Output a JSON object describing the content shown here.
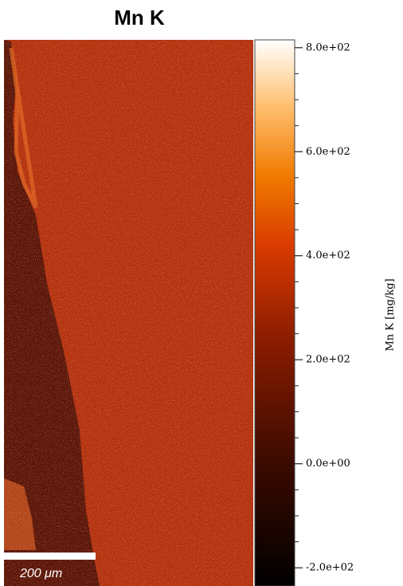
{
  "chart_data": {
    "type": "image-map",
    "title": "Mn K",
    "colorbar_label": "Mn K  [mg/kg]",
    "clim": [
      -235,
      815
    ],
    "cticks": [
      {
        "value": 800,
        "label": "8.0e+02"
      },
      {
        "value": 600,
        "label": "6.0e+02"
      },
      {
        "value": 400,
        "label": "4.0e+02"
      },
      {
        "value": 200,
        "label": "2.0e+02"
      },
      {
        "value": 0,
        "label": "0.0e+00"
      },
      {
        "value": -200,
        "label": "-2.0e+02"
      }
    ],
    "cminorticks": [
      -150,
      -100,
      -50,
      50,
      100,
      150,
      250,
      300,
      350,
      450,
      500,
      550,
      650,
      700,
      750
    ],
    "scalebar_label": "200 μm"
  }
}
